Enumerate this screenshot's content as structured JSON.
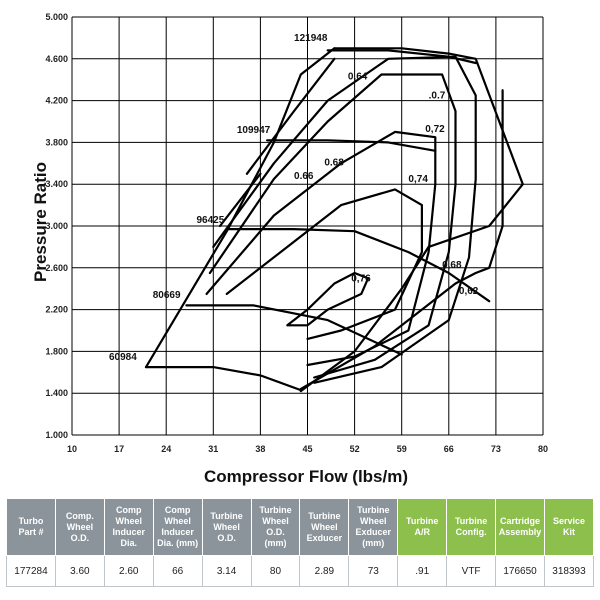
{
  "chart_data": {
    "type": "line",
    "title": "",
    "xlabel": "Compressor Flow (lbs/m)",
    "ylabel": "Pressure Ratio",
    "xlim": [
      10,
      80
    ],
    "ylim": [
      1.0,
      5.0
    ],
    "x_ticks": [
      "10",
      "17",
      "24",
      "31",
      "38",
      "45",
      "52",
      "59",
      "66",
      "73",
      "80"
    ],
    "y_ticks": [
      "1.000",
      "1.400",
      "1.800",
      "2.200",
      "2.600",
      "3.000",
      "3.400",
      "3.800",
      "4.200",
      "4.600",
      "5.000"
    ],
    "x_tick_values": [
      10,
      17,
      24,
      31,
      38,
      45,
      52,
      59,
      66,
      73,
      80
    ],
    "y_tick_values": [
      1.0,
      1.4,
      1.8,
      2.2,
      2.6,
      3.0,
      3.4,
      3.8,
      4.2,
      4.6,
      5.0
    ],
    "surge_line": [
      [
        21.0,
        1.65
      ],
      [
        33.0,
        2.95
      ],
      [
        40.0,
        3.8
      ],
      [
        44.0,
        4.45
      ],
      [
        49.0,
        4.7
      ]
    ],
    "choke_line": [
      [
        44.0,
        1.42
      ],
      [
        52.0,
        1.8
      ],
      [
        59.0,
        2.4
      ],
      [
        63.0,
        2.8
      ],
      [
        72.0,
        3.0
      ],
      [
        77.0,
        3.4
      ],
      [
        70.0,
        4.6
      ],
      [
        66.0,
        4.65
      ],
      [
        59.0,
        4.7
      ],
      [
        49.0,
        4.7
      ]
    ],
    "speed_lines": [
      {
        "name": "60984",
        "points": [
          [
            21.0,
            1.65
          ],
          [
            31.0,
            1.65
          ],
          [
            38.0,
            1.57
          ],
          [
            44.0,
            1.43
          ]
        ]
      },
      {
        "name": "80669",
        "points": [
          [
            27.0,
            2.24
          ],
          [
            37.0,
            2.24
          ],
          [
            48.0,
            2.1
          ],
          [
            59.0,
            1.77
          ]
        ]
      },
      {
        "name": "96425",
        "points": [
          [
            33.0,
            2.97
          ],
          [
            43.0,
            2.97
          ],
          [
            52.0,
            2.95
          ],
          [
            60.0,
            2.75
          ],
          [
            66.0,
            2.55
          ],
          [
            72.0,
            2.28
          ]
        ]
      },
      {
        "name": "109947",
        "points": [
          [
            39.0,
            3.82
          ],
          [
            48.0,
            3.82
          ],
          [
            57.0,
            3.8
          ],
          [
            64.0,
            3.72
          ]
        ]
      },
      {
        "name": "121948",
        "points": [
          [
            48.0,
            4.68
          ],
          [
            57.0,
            4.68
          ],
          [
            66.0,
            4.62
          ],
          [
            70.0,
            4.56
          ]
        ]
      }
    ],
    "efficiency_islands": [
      {
        "name": "0.76",
        "points": [
          [
            42.0,
            2.05
          ],
          [
            45.0,
            2.2
          ],
          [
            49.0,
            2.45
          ],
          [
            52.0,
            2.55
          ],
          [
            54.0,
            2.5
          ],
          [
            53.0,
            2.35
          ],
          [
            48.0,
            2.2
          ],
          [
            45.0,
            2.05
          ],
          [
            42.0,
            2.05
          ]
        ]
      },
      {
        "name": "0.74",
        "points": [
          [
            33.0,
            2.35
          ],
          [
            41.0,
            2.75
          ],
          [
            50.0,
            3.2
          ],
          [
            58.0,
            3.35
          ],
          [
            62.0,
            3.2
          ],
          [
            62.0,
            2.75
          ],
          [
            58.0,
            2.2
          ],
          [
            50.0,
            2.0
          ],
          [
            45.0,
            1.92
          ]
        ]
      },
      {
        "name": "0.72",
        "points": [
          [
            30.0,
            2.35
          ],
          [
            40.0,
            3.1
          ],
          [
            50.0,
            3.6
          ],
          [
            58.0,
            3.9
          ],
          [
            64.0,
            3.85
          ],
          [
            64.0,
            3.4
          ],
          [
            63.0,
            2.75
          ],
          [
            60.0,
            2.0
          ],
          [
            52.0,
            1.75
          ],
          [
            45.0,
            1.67
          ]
        ]
      },
      {
        "name": "0.7",
        "points": [
          [
            30.5,
            2.55
          ],
          [
            40.0,
            3.45
          ],
          [
            48.0,
            4.0
          ],
          [
            56.0,
            4.45
          ],
          [
            65.0,
            4.45
          ],
          [
            67.0,
            4.1
          ],
          [
            67.0,
            3.4
          ],
          [
            66.0,
            2.75
          ],
          [
            63.0,
            2.05
          ],
          [
            55.0,
            1.72
          ],
          [
            46.0,
            1.55
          ]
        ]
      },
      {
        "name": "0.68",
        "points": [
          [
            31.0,
            2.8
          ],
          [
            40.0,
            3.6
          ],
          [
            48.0,
            4.2
          ],
          [
            57.0,
            4.6
          ],
          [
            67.0,
            4.62
          ],
          [
            70.0,
            4.25
          ],
          [
            70.0,
            3.45
          ],
          [
            69.0,
            2.7
          ],
          [
            66.0,
            2.1
          ],
          [
            56.0,
            1.65
          ],
          [
            46.0,
            1.5
          ]
        ]
      },
      {
        "name": "0.66",
        "points": [
          [
            32.0,
            3.0
          ],
          [
            38.0,
            3.5
          ]
        ]
      },
      {
        "name": "0.64",
        "points": [
          [
            36.0,
            3.5
          ],
          [
            43.0,
            4.1
          ],
          [
            49.0,
            4.6
          ]
        ]
      },
      {
        "name": "0.62",
        "points": [
          [
            44.0,
            1.44
          ],
          [
            55.0,
            1.85
          ],
          [
            62.0,
            2.2
          ],
          [
            67.0,
            2.45
          ],
          [
            70.0,
            2.55
          ],
          [
            72.0,
            2.6
          ],
          [
            74.0,
            3.0
          ],
          [
            74.0,
            4.3
          ]
        ]
      }
    ],
    "speed_label_positions": [
      {
        "name": "60984",
        "x": 15.5,
        "y": 1.72
      },
      {
        "name": "80669",
        "x": 22.0,
        "y": 2.31
      },
      {
        "name": "96425",
        "x": 28.5,
        "y": 3.03
      },
      {
        "name": "109947",
        "x": 34.5,
        "y": 3.89
      },
      {
        "name": "121948",
        "x": 43.0,
        "y": 4.77
      }
    ],
    "efficiency_label_positions": [
      {
        "name": "0,64",
        "x": 51.0,
        "y": 4.4
      },
      {
        "name": ".0.7",
        "x": 63.0,
        "y": 4.22
      },
      {
        "name": "0,72",
        "x": 62.5,
        "y": 3.9
      },
      {
        "name": "0.68",
        "x": 47.5,
        "y": 3.58
      },
      {
        "name": "0.66",
        "x": 43.0,
        "y": 3.45
      },
      {
        "name": "0,74",
        "x": 60.0,
        "y": 3.42
      },
      {
        "name": "0,76",
        "x": 51.5,
        "y": 2.47
      },
      {
        "name": "0,68",
        "x": 65.0,
        "y": 2.6
      },
      {
        "name": "0,62",
        "x": 67.5,
        "y": 2.35
      }
    ]
  },
  "spec_table": {
    "headers": [
      {
        "label": "Turbo\nPart #",
        "color": "gray"
      },
      {
        "label": "Comp.\nWheel\nO.D.",
        "color": "gray"
      },
      {
        "label": "Comp\nWheel\nInducer\nDia.",
        "color": "gray"
      },
      {
        "label": "Comp\nWheel\nInducer\nDia. (mm)",
        "color": "gray"
      },
      {
        "label": "Turbine\nWheel\nO.D.",
        "color": "gray"
      },
      {
        "label": "Turbine\nWheel\nO.D.\n(mm)",
        "color": "gray"
      },
      {
        "label": "Turbine\nWheel\nExducer",
        "color": "gray"
      },
      {
        "label": "Turbine\nWheel\nExducer\n(mm)",
        "color": "gray"
      },
      {
        "label": "Turbine\nA/R",
        "color": "green"
      },
      {
        "label": "Turbine\nConfig.",
        "color": "green"
      },
      {
        "label": "Cartridge\nAssembly",
        "color": "green"
      },
      {
        "label": "Service\nKit",
        "color": "green"
      }
    ],
    "row": [
      "177284",
      "3.60",
      "2.60",
      "66",
      "3.14",
      "80",
      "2.89",
      "73",
      ".91",
      "VTF",
      "176650",
      "318393"
    ]
  },
  "colors": {
    "header_gray": "#8a949a",
    "header_green": "#8dbf4c"
  }
}
